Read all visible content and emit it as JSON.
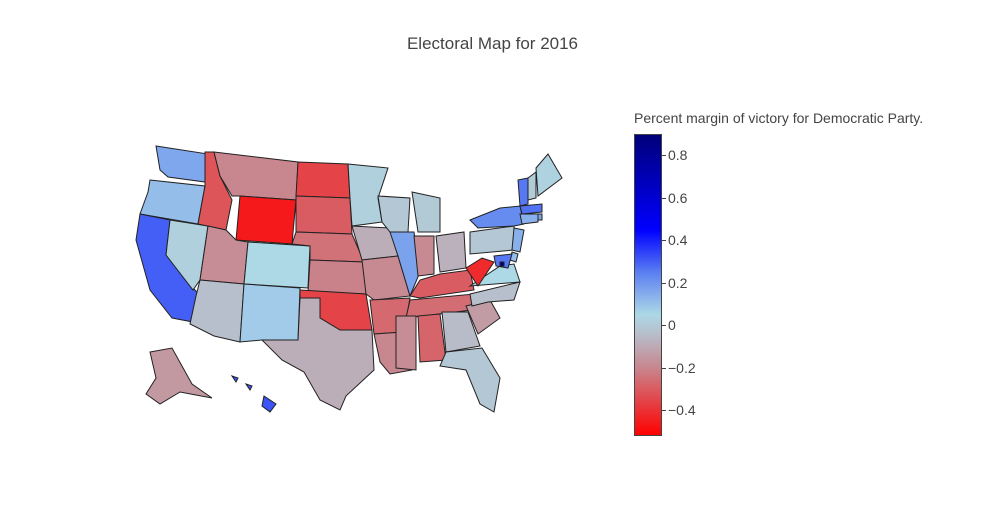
{
  "title": "Electoral Map for 2016",
  "colorbar": {
    "title": "Percent margin of victory for Democratic Party.",
    "ticks": [
      "0.8",
      "0.6",
      "0.4",
      "0.2",
      "0",
      "−0.2",
      "−0.4"
    ],
    "tick_values": [
      0.8,
      0.6,
      0.4,
      0.2,
      0,
      -0.2,
      -0.4
    ],
    "range": [
      -0.52,
      0.9
    ],
    "colors": [
      "#ff0000",
      "#c8868e",
      "#b7bcc8",
      "#add8e6",
      "#5a7ff2",
      "#0000ff",
      "#00007a"
    ],
    "color_stops": [
      -0.52,
      -0.2,
      -0.05,
      0.05,
      0.25,
      0.45,
      0.9
    ]
  },
  "map_data": {
    "metric": "Democratic margin",
    "states": [
      {
        "code": "WA",
        "value": 0.16
      },
      {
        "code": "OR",
        "value": 0.11
      },
      {
        "code": "CA",
        "value": 0.3
      },
      {
        "code": "NV",
        "value": 0.02
      },
      {
        "code": "ID",
        "value": -0.32
      },
      {
        "code": "MT",
        "value": -0.2
      },
      {
        "code": "WY",
        "value": -0.46
      },
      {
        "code": "UT",
        "value": -0.18
      },
      {
        "code": "CO",
        "value": 0.05
      },
      {
        "code": "AZ",
        "value": -0.04
      },
      {
        "code": "NM",
        "value": 0.08
      },
      {
        "code": "ND",
        "value": -0.36
      },
      {
        "code": "SD",
        "value": -0.3
      },
      {
        "code": "NE",
        "value": -0.25
      },
      {
        "code": "KS",
        "value": -0.21
      },
      {
        "code": "OK",
        "value": -0.36
      },
      {
        "code": "TX",
        "value": -0.09
      },
      {
        "code": "MN",
        "value": 0.02
      },
      {
        "code": "IA",
        "value": -0.09
      },
      {
        "code": "MO",
        "value": -0.19
      },
      {
        "code": "AR",
        "value": -0.27
      },
      {
        "code": "LA",
        "value": -0.2
      },
      {
        "code": "WI",
        "value": -0.01
      },
      {
        "code": "IL",
        "value": 0.17
      },
      {
        "code": "MI",
        "value": -0.002
      },
      {
        "code": "IN",
        "value": -0.19
      },
      {
        "code": "OH",
        "value": -0.08
      },
      {
        "code": "KY",
        "value": -0.3
      },
      {
        "code": "TN",
        "value": -0.26
      },
      {
        "code": "MS",
        "value": -0.18
      },
      {
        "code": "AL",
        "value": -0.28
      },
      {
        "code": "GA",
        "value": -0.05
      },
      {
        "code": "FL",
        "value": -0.01
      },
      {
        "code": "SC",
        "value": -0.14
      },
      {
        "code": "NC",
        "value": -0.04
      },
      {
        "code": "VA",
        "value": 0.05
      },
      {
        "code": "WV",
        "value": -0.42
      },
      {
        "code": "PA",
        "value": -0.01
      },
      {
        "code": "NY",
        "value": 0.22
      },
      {
        "code": "VT",
        "value": 0.26
      },
      {
        "code": "NH",
        "value": 0.004
      },
      {
        "code": "ME",
        "value": 0.03
      },
      {
        "code": "MA",
        "value": 0.27
      },
      {
        "code": "RI",
        "value": 0.16
      },
      {
        "code": "CT",
        "value": 0.14
      },
      {
        "code": "NJ",
        "value": 0.14
      },
      {
        "code": "DE",
        "value": 0.11
      },
      {
        "code": "MD",
        "value": 0.26
      },
      {
        "code": "DC",
        "value": 0.87
      },
      {
        "code": "AK",
        "value": -0.15
      },
      {
        "code": "HI",
        "value": 0.32
      }
    ]
  }
}
